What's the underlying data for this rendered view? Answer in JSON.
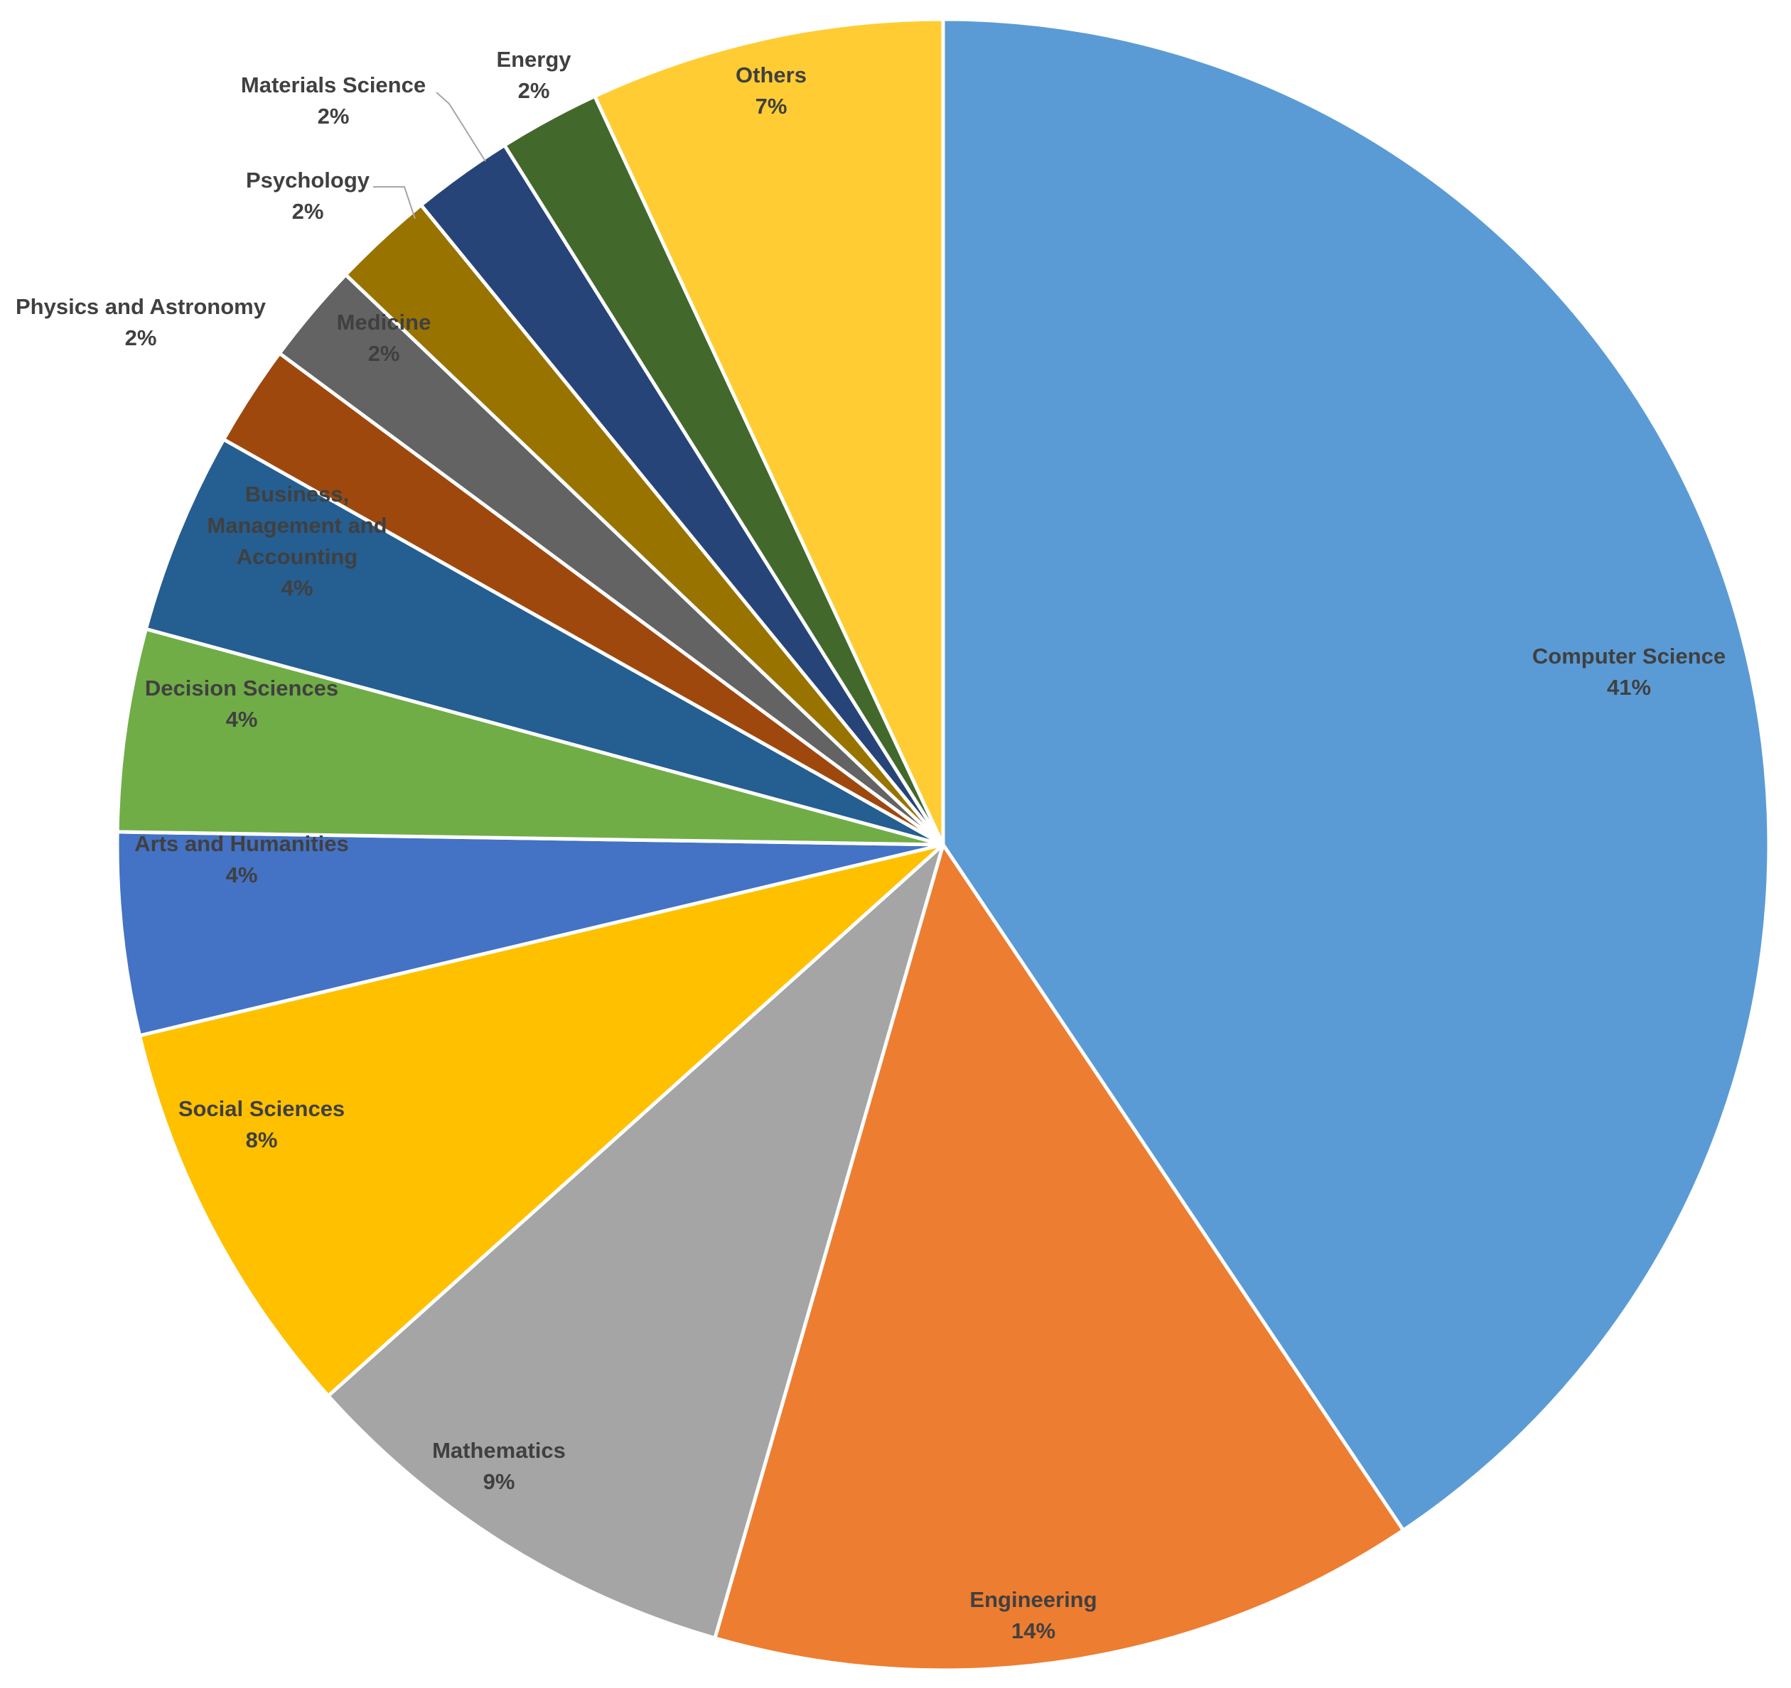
{
  "chart_data": {
    "type": "pie",
    "title": "",
    "start_angle_deg": 0,
    "direction": "clockwise",
    "legend": "none",
    "data_labels": "category-name-and-percent",
    "slices": [
      {
        "label": "Computer Science",
        "value": 41,
        "percent_text": "41%",
        "color": "#5B9BD5"
      },
      {
        "label": "Engineering",
        "value": 14,
        "percent_text": "14%",
        "color": "#ED7D31"
      },
      {
        "label": "Mathematics",
        "value": 9,
        "percent_text": "9%",
        "color": "#A5A5A5"
      },
      {
        "label": "Social Sciences",
        "value": 8,
        "percent_text": "8%",
        "color": "#FFC000"
      },
      {
        "label": "Arts and Humanities",
        "value": 4,
        "percent_text": "4%",
        "color": "#4472C4"
      },
      {
        "label": "Decision Sciences",
        "value": 4,
        "percent_text": "4%",
        "color": "#70AD47"
      },
      {
        "label": "Business, Management and Accounting",
        "value": 4,
        "percent_text": "4%",
        "color": "#255E91"
      },
      {
        "label": "Physics and Astronomy",
        "value": 2,
        "percent_text": "2%",
        "color": "#9E480E"
      },
      {
        "label": "Medicine",
        "value": 2,
        "percent_text": "2%",
        "color": "#636363"
      },
      {
        "label": "Psychology",
        "value": 2,
        "percent_text": "2%",
        "color": "#997300"
      },
      {
        "label": "Materials Science",
        "value": 2,
        "percent_text": "2%",
        "color": "#264478"
      },
      {
        "label": "Energy",
        "value": 2,
        "percent_text": "2%",
        "color": "#43682B"
      },
      {
        "label": "Others",
        "value": 7,
        "percent_text": "7%",
        "color": "#FFCD33"
      }
    ]
  }
}
